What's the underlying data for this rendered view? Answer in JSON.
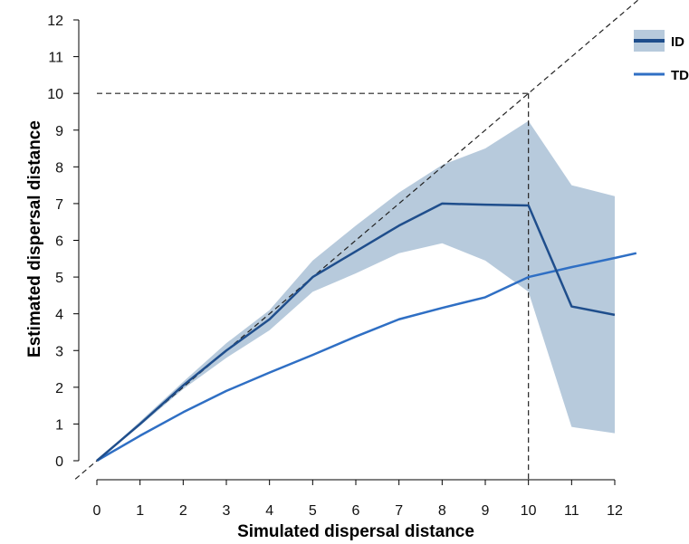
{
  "chart_data": {
    "type": "line",
    "xlabel": "Simulated dispersal distance",
    "ylabel": "Estimated dispersal distance",
    "xlim": [
      0,
      12
    ],
    "ylim": [
      0,
      12
    ],
    "x_ticks": [
      0,
      1,
      2,
      3,
      4,
      5,
      6,
      7,
      8,
      9,
      10,
      11,
      12
    ],
    "y_ticks": [
      0,
      1,
      2,
      3,
      4,
      5,
      6,
      7,
      8,
      9,
      10,
      11,
      12
    ],
    "grid": false,
    "legend_position": "top-right",
    "reference_line": {
      "type": "identity",
      "style": "dashed"
    },
    "reference_guides": {
      "x": 10,
      "y": 10,
      "style": "dashed"
    },
    "series": [
      {
        "name": "ID",
        "color": "#1f4e8c",
        "band_color": "#b7cadc",
        "x": [
          0,
          1,
          2,
          3,
          4,
          5,
          6,
          7,
          8,
          9,
          10,
          11,
          12
        ],
        "y": [
          0,
          1.0,
          2.05,
          3.0,
          3.85,
          5.0,
          5.7,
          6.4,
          7.0,
          6.97,
          6.95,
          4.2,
          3.97
        ],
        "lower": [
          0,
          0.95,
          1.95,
          2.8,
          3.55,
          4.6,
          5.1,
          5.65,
          5.92,
          5.45,
          4.6,
          0.92,
          0.75
        ],
        "upper": [
          0,
          1.07,
          2.15,
          3.2,
          4.1,
          5.45,
          6.4,
          7.3,
          8.05,
          8.5,
          9.25,
          7.5,
          7.2
        ]
      },
      {
        "name": "TD",
        "color": "#2f6fc4",
        "x": [
          0,
          1,
          2,
          3,
          4,
          5,
          6,
          7,
          8,
          9,
          10,
          11,
          12,
          12.5
        ],
        "y": [
          0,
          0.68,
          1.32,
          1.9,
          2.4,
          2.88,
          3.38,
          3.85,
          4.16,
          4.45,
          5.0,
          5.27,
          5.52,
          5.65
        ]
      }
    ]
  }
}
